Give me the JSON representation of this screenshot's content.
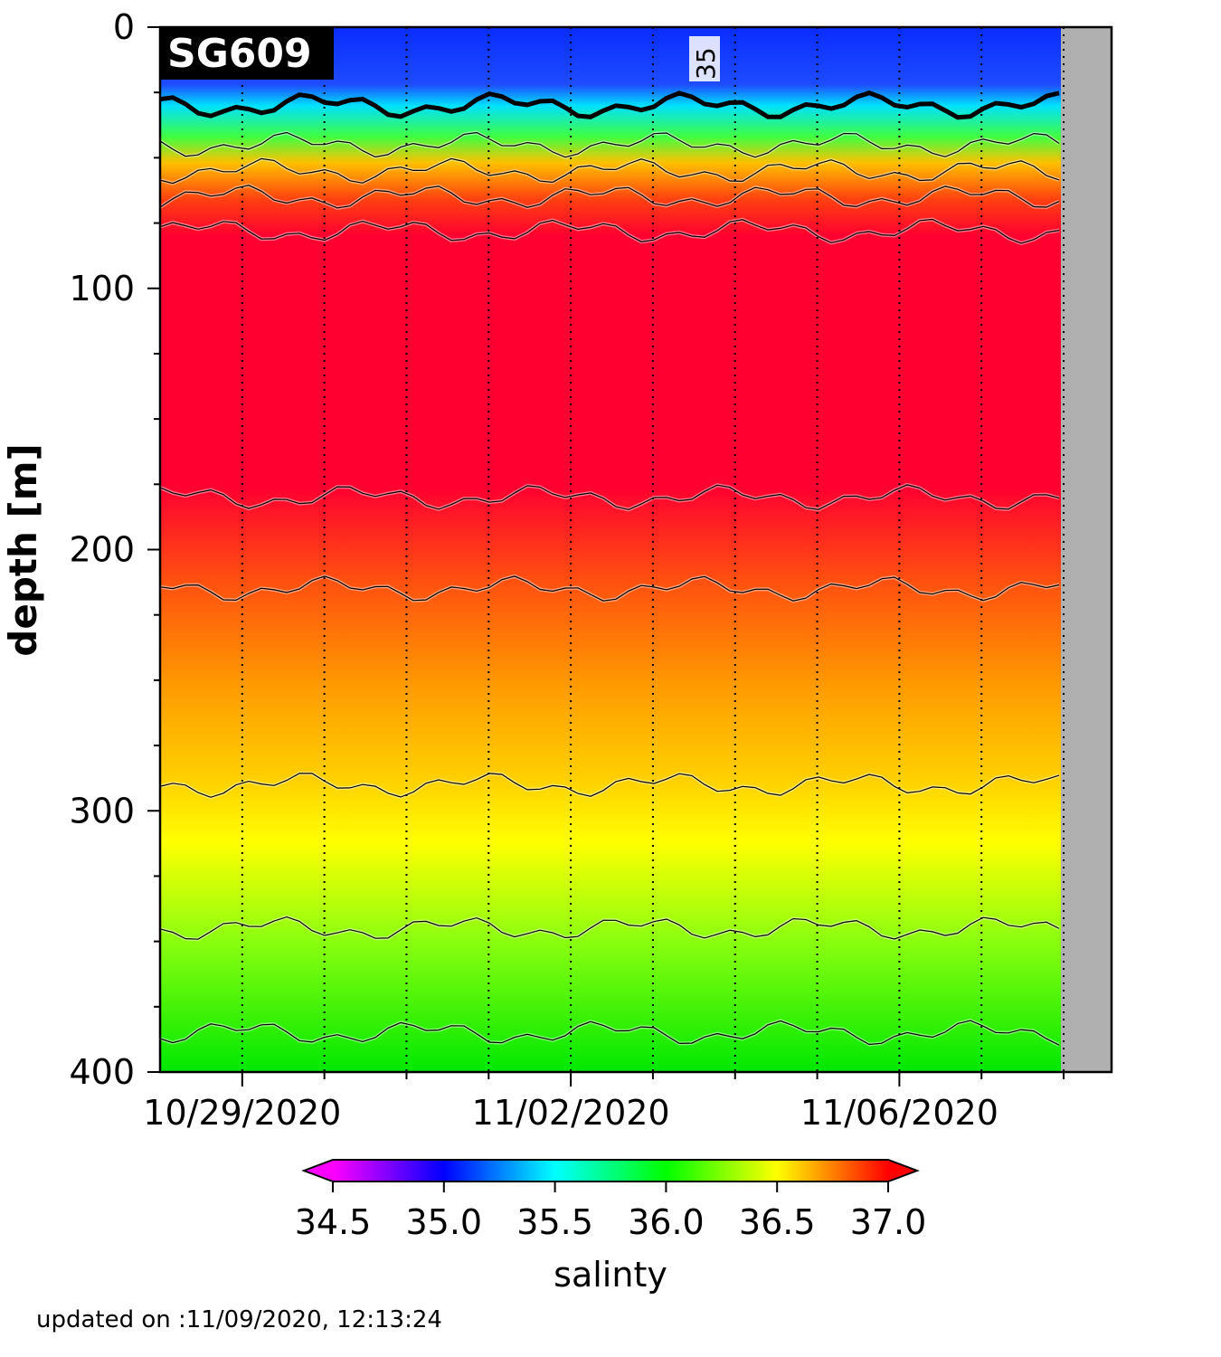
{
  "chart_data": {
    "type": "heatmap",
    "title": "SG609",
    "ylabel": "depth [m]",
    "xlabel": "",
    "ylim": [
      400,
      0
    ],
    "yticks": [
      0,
      100,
      200,
      300,
      400
    ],
    "xlim": [
      "2020-10-28",
      "2020-11-08 14:00"
    ],
    "xticks_major": [
      {
        "date": "2020-10-29",
        "label": "10/29/2020"
      },
      {
        "date": "2020-11-02",
        "label": "11/02/2020"
      },
      {
        "date": "2020-11-06",
        "label": "11/06/2020"
      }
    ],
    "xticks_minor": [
      "2020-10-30",
      "2020-10-31",
      "2020-11-01",
      "2020-11-03",
      "2020-11-04",
      "2020-11-05",
      "2020-11-07",
      "2020-11-08"
    ],
    "data_end": "2020-11-08 02:00",
    "grid": "vertical dotted lines at daily ticks",
    "colorbar": {
      "label": "salinty",
      "range": [
        34.5,
        37.0
      ],
      "ticks": [
        "34.5",
        "35.0",
        "35.5",
        "36.0",
        "36.5",
        "37.0"
      ],
      "colormap": [
        "#ff00ff",
        "#0000ff",
        "#00ffff",
        "#00ff00",
        "#ffff00",
        "#ff0000"
      ],
      "extend": "both"
    },
    "contour_label": "35",
    "layers": [
      {
        "depth_top": 0,
        "depth_bottom": 35,
        "salinity": 35.0
      },
      {
        "depth_top": 35,
        "depth_bottom": 55,
        "salinity": 35.8
      },
      {
        "depth_top": 55,
        "depth_bottom": 75,
        "salinity": 36.6
      },
      {
        "depth_top": 75,
        "depth_bottom": 180,
        "salinity": 37.0
      },
      {
        "depth_top": 180,
        "depth_bottom": 215,
        "salinity": 36.9
      },
      {
        "depth_top": 215,
        "depth_bottom": 290,
        "salinity": 36.7
      },
      {
        "depth_top": 290,
        "depth_bottom": 345,
        "salinity": 36.4
      },
      {
        "depth_top": 345,
        "depth_bottom": 385,
        "salinity": 36.1
      },
      {
        "depth_top": 385,
        "depth_bottom": 400,
        "salinity": 36.0
      }
    ],
    "isolines_depth_m": [
      30,
      45,
      55,
      65,
      78,
      180,
      215,
      290,
      345,
      385
    ]
  },
  "footer": "updated on :11/09/2020, 12:13:24"
}
